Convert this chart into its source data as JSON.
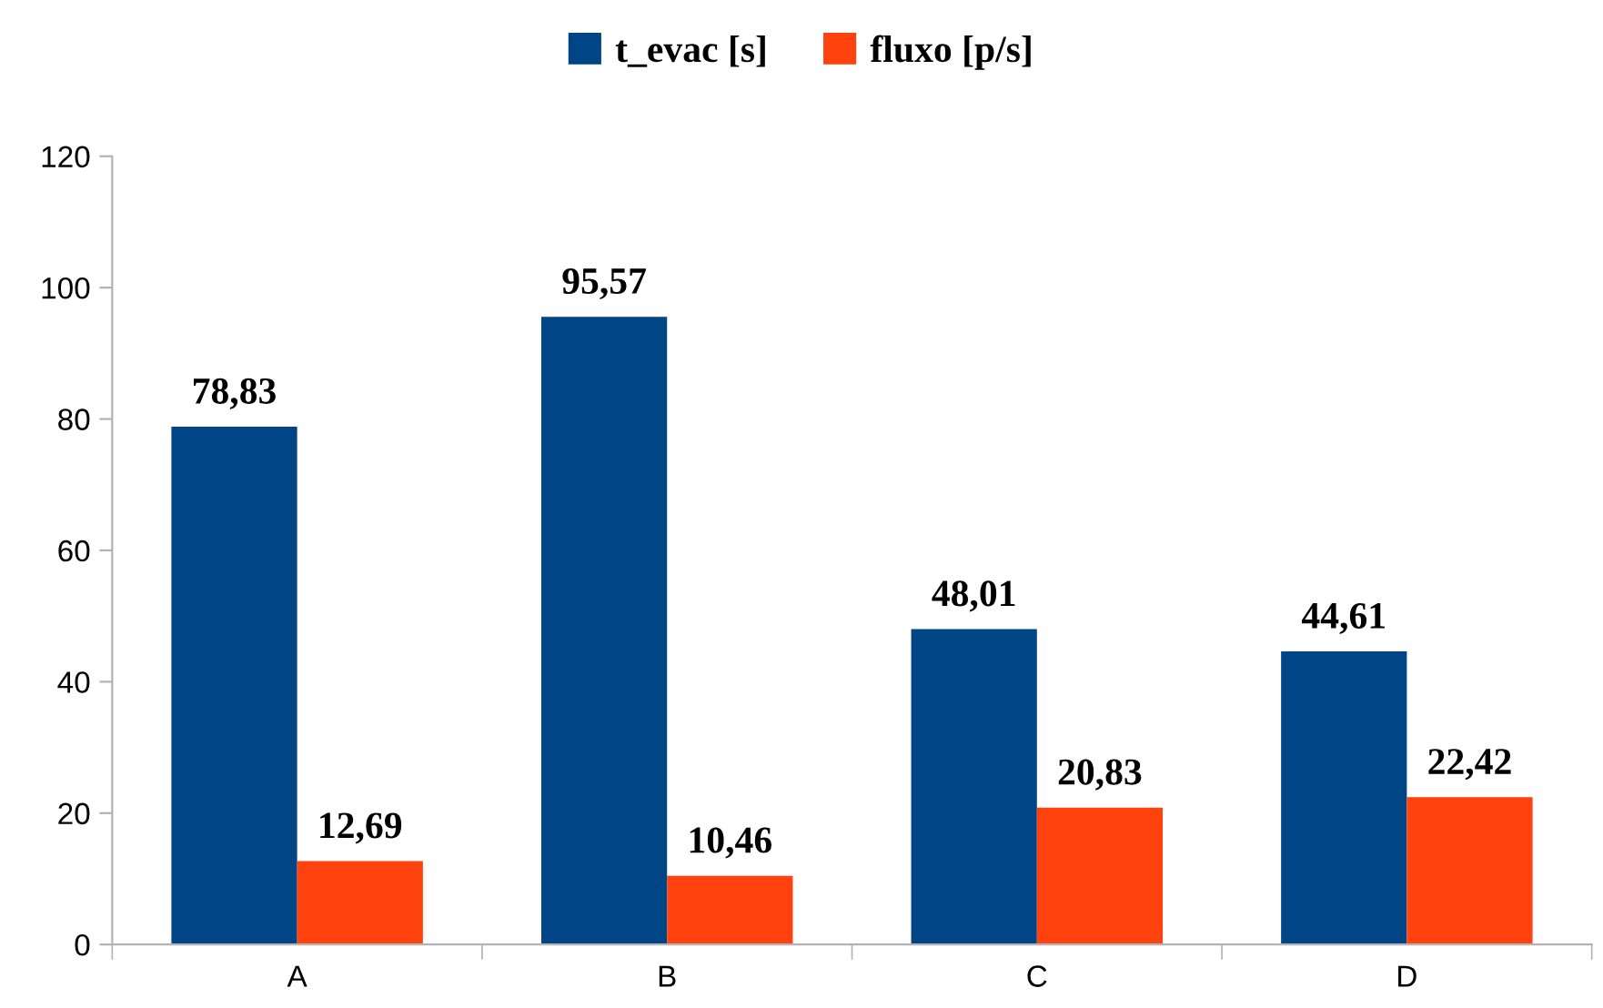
{
  "chart_data": {
    "type": "bar",
    "categories": [
      "A",
      "B",
      "C",
      "D"
    ],
    "series": [
      {
        "name": "t_evac [s]",
        "color": "#004586",
        "values": [
          78.83,
          95.57,
          48.01,
          44.61
        ],
        "value_labels": [
          "78,83",
          "95,57",
          "48,01",
          "44,61"
        ]
      },
      {
        "name": "fluxo [p/s]",
        "color": "#ff420e",
        "values": [
          12.69,
          10.46,
          20.83,
          22.42
        ],
        "value_labels": [
          "12,69",
          "10,46",
          "20,83",
          "22,42"
        ]
      }
    ],
    "ylim": [
      0,
      120
    ],
    "yticks": [
      0,
      20,
      40,
      60,
      80,
      100,
      120
    ],
    "grid": false,
    "legend": "top"
  }
}
